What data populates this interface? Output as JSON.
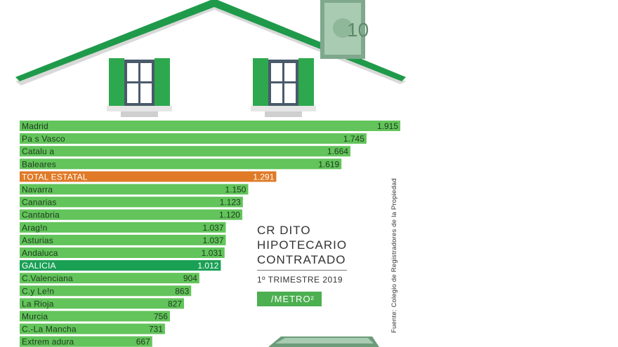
{
  "chart_data": {
    "type": "bar",
    "orientation": "horizontal",
    "categories": [
      "Madrid",
      "Pa s Vasco",
      "Catalu a",
      "Baleares",
      "TOTAL ESTATAL",
      "Navarra",
      "Canarias",
      "Cantabria",
      "Arag!n",
      "Asturias",
      "Andaluca",
      "GALICIA",
      "C.Valenciana",
      "C.y Le!n",
      "La Rioja",
      "Murcia",
      "C.-La Mancha",
      "Extrem adura"
    ],
    "value_labels": [
      "1.915",
      "1.745",
      "1.664",
      "1.619",
      "1.291",
      "1.150",
      "1.123",
      "1.120",
      "1.037",
      "1.037",
      "1.031",
      "1.012",
      "904",
      "863",
      "827",
      "756",
      "731",
      "667"
    ],
    "values": [
      1915,
      1745,
      1664,
      1619,
      1291,
      1150,
      1123,
      1120,
      1037,
      1037,
      1031,
      1012,
      904,
      863,
      827,
      756,
      731,
      667
    ],
    "highlight": {
      "TOTAL ESTATAL": "#e07a26",
      "GALICIA": "#1aa055"
    },
    "bar_color": "#62c45a"
  },
  "legend": {
    "title": "CR DITO\nHIPOTECARIO\nCONTRATADO",
    "subtitle": "1º TRIMESTRE 2019",
    "unit": "/METRO²"
  },
  "source": "Fuente: Colegio de Registradores de la Propiedad",
  "colors": {
    "roof": "#1f9a4a",
    "window_shutter": "#2ea84e",
    "window_frame": "#4a5a6a"
  }
}
